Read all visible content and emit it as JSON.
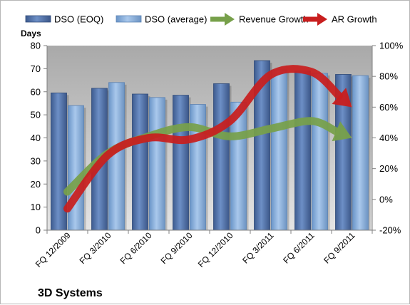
{
  "chart_data": {
    "type": "bar",
    "title": "3D Systems",
    "ylabel": "Days",
    "categories": [
      "FQ 12/2009",
      "FQ 3/2010",
      "FQ 6/2010",
      "FQ 9/2010",
      "FQ 12/2010",
      "FQ 3/2011",
      "FQ 6/2011",
      "FQ 9/2011"
    ],
    "ylim": [
      0,
      80
    ],
    "y_ticks": [
      0,
      10,
      20,
      30,
      40,
      50,
      60,
      70,
      80
    ],
    "y2lim": [
      -20,
      100
    ],
    "y2_ticks": [
      "-20%",
      "0%",
      "20%",
      "40%",
      "60%",
      "80%",
      "100%"
    ],
    "y2_tick_values": [
      -20,
      0,
      20,
      40,
      60,
      80,
      100
    ],
    "grid": false,
    "legend_position": "top",
    "series": [
      {
        "name": "DSO (EOQ)",
        "kind": "bar",
        "axis": "left",
        "values": [
          59.5,
          61.5,
          59,
          58.5,
          63.5,
          73.5,
          69,
          67.5
        ],
        "color": "#4f6fa8"
      },
      {
        "name": "DSO (average)",
        "kind": "bar",
        "axis": "left",
        "values": [
          54,
          64,
          57.5,
          54.5,
          55.5,
          69.5,
          68,
          67
        ],
        "color": "#7fa8d8"
      },
      {
        "name": "Revenue Growth",
        "kind": "arrow-line",
        "axis": "right",
        "values": [
          5,
          30,
          41,
          47,
          41,
          46,
          51,
          40
        ],
        "color": "#77a04a"
      },
      {
        "name": "AR Growth",
        "kind": "arrow-line",
        "axis": "right",
        "values": [
          -6,
          29,
          40,
          39,
          51,
          81,
          83,
          60
        ],
        "color": "#c81e1e"
      }
    ]
  }
}
